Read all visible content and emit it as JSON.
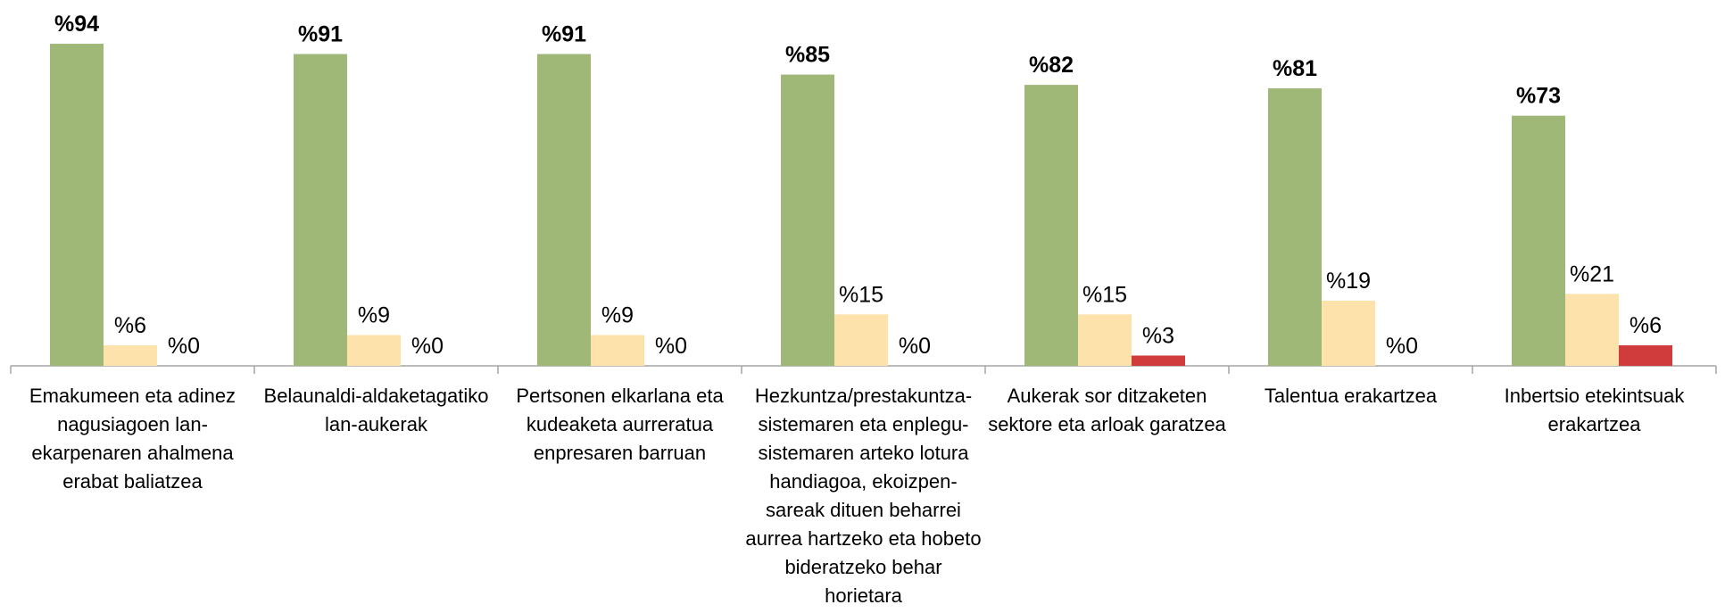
{
  "chart_data": {
    "type": "bar",
    "categories": [
      "Emakumeen eta adinez nagusiagoen lan-ekarpenaren ahalmena erabat baliatzea",
      "Belaunaldi-aldaketagatiko lan-aukerak",
      "Pertsonen elkarlana eta kudeaketa aurreratua enpresaren barruan",
      "Hezkuntza/prestakuntza-sistemaren eta enplegu-sistemaren arteko lotura handiagoa, ekoizpen-sareak dituen beharrei aurrea hartzeko eta hobeto bideratzeko behar horietara",
      "Aukerak sor ditzaketen sektore eta arloak garatzea",
      "Talentua erakartzea",
      "Inbertsio etekintsuak erakartzea"
    ],
    "series": [
      {
        "color": "#9fb877",
        "values": [
          94,
          91,
          91,
          85,
          82,
          81,
          73
        ],
        "value_labels": [
          "%94",
          "%91",
          "%91",
          "%85",
          "%82",
          "%81",
          "%73"
        ]
      },
      {
        "color": "#fde3ab",
        "values": [
          6,
          9,
          9,
          15,
          15,
          19,
          21
        ],
        "value_labels": [
          "%6",
          "%9",
          "%9",
          "%15",
          "%15",
          "%19",
          "%21"
        ]
      },
      {
        "color": "#d03c3c",
        "values": [
          0,
          0,
          0,
          0,
          3,
          0,
          6
        ],
        "value_labels": [
          "%0",
          "%0",
          "%0",
          "%0",
          "%3",
          "%0",
          "%6"
        ]
      }
    ],
    "ylim": [
      0,
      100
    ]
  }
}
